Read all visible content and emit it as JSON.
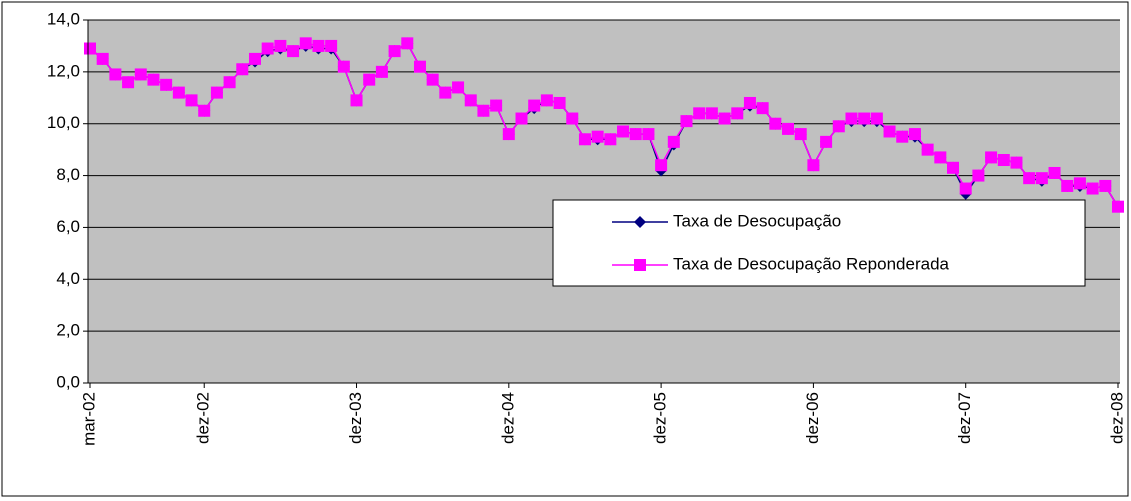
{
  "chart_data": {
    "type": "line",
    "categories": [
      "mar-02",
      null,
      null,
      null,
      null,
      null,
      null,
      null,
      null,
      "dez-02",
      null,
      null,
      null,
      null,
      null,
      null,
      null,
      null,
      null,
      null,
      null,
      "dez-03",
      null,
      null,
      null,
      null,
      null,
      null,
      null,
      null,
      null,
      null,
      null,
      "dez-04",
      null,
      null,
      null,
      null,
      null,
      null,
      null,
      null,
      null,
      null,
      null,
      "dez-05",
      null,
      null,
      null,
      null,
      null,
      null,
      null,
      null,
      null,
      null,
      null,
      "dez-06",
      null,
      null,
      null,
      null,
      null,
      null,
      null,
      null,
      null,
      null,
      null,
      "dez-07",
      null,
      null,
      null,
      null,
      null,
      null,
      null,
      null,
      null,
      null,
      null,
      "dez-08"
    ],
    "series": [
      {
        "name": "Taxa de Desocupação",
        "color": "#000080",
        "marker": "diamond",
        "values": [
          12.9,
          12.5,
          11.9,
          11.6,
          11.9,
          11.7,
          11.5,
          11.2,
          10.9,
          10.5,
          11.2,
          11.6,
          12.1,
          12.4,
          12.8,
          12.9,
          12.8,
          13.0,
          12.9,
          12.9,
          12.2,
          10.9,
          11.7,
          12.0,
          12.8,
          13.1,
          12.2,
          11.7,
          11.2,
          11.4,
          10.9,
          10.5,
          10.7,
          9.6,
          10.2,
          10.6,
          10.9,
          10.8,
          10.2,
          9.4,
          9.4,
          9.4,
          9.7,
          9.6,
          9.6,
          8.2,
          9.2,
          10.1,
          10.4,
          10.4,
          10.2,
          10.4,
          10.7,
          10.6,
          10.0,
          9.8,
          9.6,
          8.4,
          9.3,
          9.9,
          10.1,
          10.1,
          10.1,
          9.7,
          9.5,
          9.5,
          9.0,
          8.7,
          8.3,
          7.3,
          8.0,
          8.7,
          8.6,
          8.5,
          7.9,
          7.8,
          8.1,
          7.6,
          7.6,
          7.5,
          7.6,
          6.8
        ]
      },
      {
        "name": "Taxa de Desocupação Reponderada",
        "color": "#ff00ff",
        "marker": "square",
        "values": [
          12.9,
          12.5,
          11.9,
          11.6,
          11.9,
          11.7,
          11.5,
          11.2,
          10.9,
          10.5,
          11.2,
          11.6,
          12.1,
          12.5,
          12.9,
          13.0,
          12.8,
          13.1,
          13.0,
          13.0,
          12.2,
          10.9,
          11.7,
          12.0,
          12.8,
          13.1,
          12.2,
          11.7,
          11.2,
          11.4,
          10.9,
          10.5,
          10.7,
          9.6,
          10.2,
          10.7,
          10.9,
          10.8,
          10.2,
          9.4,
          9.5,
          9.4,
          9.7,
          9.6,
          9.6,
          8.4,
          9.3,
          10.1,
          10.4,
          10.4,
          10.2,
          10.4,
          10.8,
          10.6,
          10.0,
          9.8,
          9.6,
          8.4,
          9.3,
          9.9,
          10.2,
          10.2,
          10.2,
          9.7,
          9.5,
          9.6,
          9.0,
          8.7,
          8.3,
          7.5,
          8.0,
          8.7,
          8.6,
          8.5,
          7.9,
          7.9,
          8.1,
          7.6,
          7.7,
          7.5,
          7.6,
          6.8
        ]
      }
    ],
    "ylim": [
      0,
      14
    ],
    "yticks": [
      {
        "value": 0,
        "label": "0,0"
      },
      {
        "value": 2,
        "label": "2,0"
      },
      {
        "value": 4,
        "label": "4,0"
      },
      {
        "value": 6,
        "label": "6,0"
      },
      {
        "value": 8,
        "label": "8,0"
      },
      {
        "value": 10,
        "label": "10,0"
      },
      {
        "value": 12,
        "label": "12,0"
      },
      {
        "value": 14,
        "label": "14,0"
      }
    ],
    "grid": true,
    "plot_background": "#c0c0c0"
  }
}
